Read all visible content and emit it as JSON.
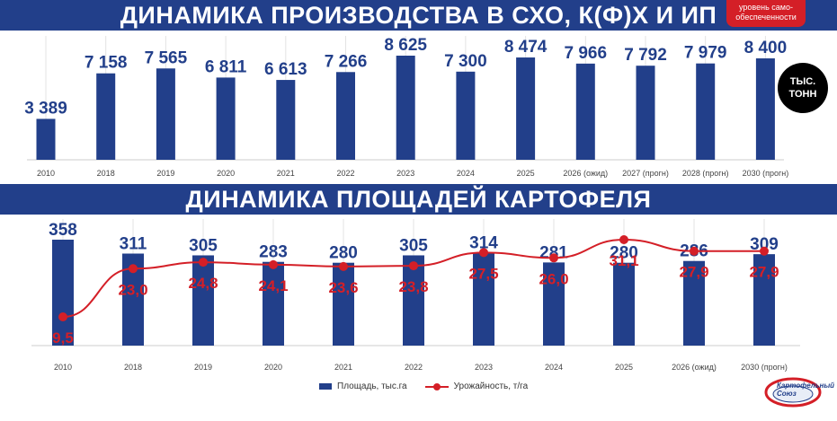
{
  "header1": {
    "title": "ДИНАМИКА ПРОИЗВОДСТВА В СХО, К(Ф)Х И ИП"
  },
  "header2": {
    "title": "ДИНАМИКА ПЛОЩАДЕЙ КАРТОФЕЛЯ"
  },
  "badge": {
    "line1": "уровень само-",
    "line2": "обеспеченности"
  },
  "unit": {
    "line1": "ТЫС.",
    "line2": "ТОНН"
  },
  "logo": {
    "line1": "Картофельный",
    "line2": "Союз"
  },
  "colors": {
    "bar": "#223f8a",
    "line": "#d41f27",
    "banner": "#223f8a",
    "badge": "#d41f27"
  },
  "chart_data": [
    {
      "type": "bar",
      "title": "ДИНАМИКА ПРОИЗВОДСТВА В СХО, К(Ф)Х И ИП",
      "unit": "ТЫС. ТОНН",
      "categories": [
        "2010",
        "2018",
        "2019",
        "2020",
        "2021",
        "2022",
        "2023",
        "2024",
        "2025",
        "2026 (ожид)",
        "2027 (прогн)",
        "2028 (прогн)",
        "2030 (прогн)"
      ],
      "values": [
        3389,
        7158,
        7565,
        6811,
        6613,
        7266,
        8625,
        7300,
        8474,
        7966,
        7792,
        7979,
        8400
      ],
      "labels": [
        "3 389",
        "7 158",
        "7 565",
        "6 811",
        "6 613",
        "7 266",
        "8 625",
        "7 300",
        "8 474",
        "7 966",
        "7 792",
        "7 979",
        "8 400"
      ],
      "ylim": [
        0,
        8625
      ],
      "grid": true
    },
    {
      "type": "bar+line",
      "title": "ДИНАМИКА ПЛОЩАДЕЙ КАРТОФЕЛЯ",
      "categories": [
        "2010",
        "2018",
        "2019",
        "2020",
        "2021",
        "2022",
        "2023",
        "2024",
        "2025",
        "2026 (ожид)",
        "2030 (прогн)"
      ],
      "series": [
        {
          "name": "Площадь, тыс.га",
          "kind": "bar",
          "values": [
            358,
            311,
            305,
            283,
            280,
            305,
            314,
            281,
            280,
            286,
            309
          ],
          "labels": [
            "358",
            "311",
            "305",
            "283",
            "280",
            "305",
            "314",
            "281",
            "280",
            "286",
            "309"
          ]
        },
        {
          "name": "Урожайность, т/га",
          "kind": "line",
          "values": [
            9.5,
            23.0,
            24.8,
            24.1,
            23.6,
            23.8,
            27.5,
            26.0,
            31.1,
            27.9,
            27.9
          ],
          "labels": [
            "9,5",
            "23,0",
            "24,8",
            "24,1",
            "23,6",
            "23,8",
            "27,5",
            "26,0",
            "31,1",
            "27,9",
            "27,9"
          ]
        }
      ],
      "ylim_bar": [
        0,
        358
      ],
      "ylim_line": [
        0,
        31.1
      ],
      "grid": true,
      "legend_position": "bottom"
    }
  ]
}
